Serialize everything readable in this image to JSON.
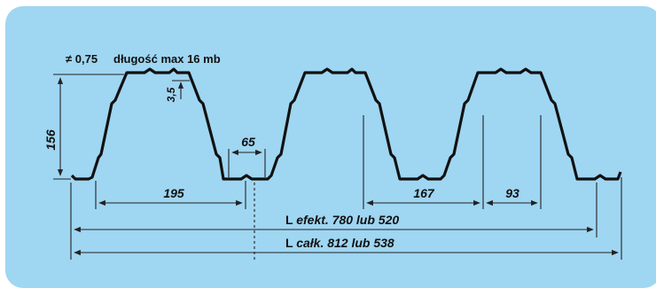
{
  "header": {
    "thickness": "≠ 0,75",
    "max_length": "długość max 16 mb"
  },
  "dimensions": {
    "height": "156",
    "notch_depth": "3,5",
    "bottom_flange": "65",
    "pitch": "195",
    "trough_width": "167",
    "crest_width": "93",
    "l_effective_prefix": "L ",
    "l_effective": "efekt. 780 lub 520",
    "l_total_prefix": "L ",
    "l_total": "całk. 812 lub 538"
  },
  "colors": {
    "background": "#9fd6f2",
    "profile": "#111111",
    "dimension_lines": "#222222"
  }
}
